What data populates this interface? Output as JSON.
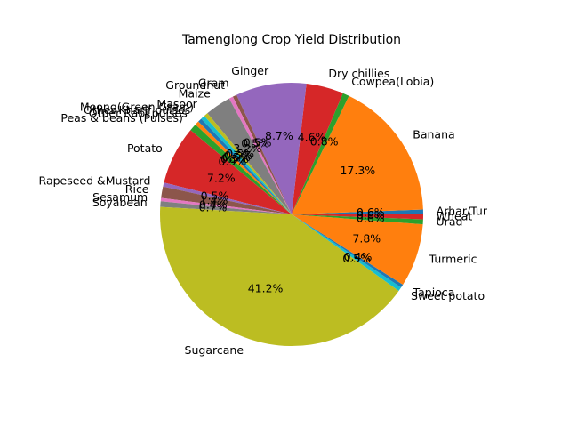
{
  "chart_data": {
    "type": "pie",
    "title": "Tamenglong Crop Yield Distribution",
    "start_angle": 0,
    "direction": "counterclockwise",
    "slices": [
      {
        "label": "Arhar/Tur",
        "value": 0.6,
        "pct_label": "0.6%",
        "color": "#1f77b4"
      },
      {
        "label": "Banana",
        "value": 17.3,
        "pct_label": "17.3%",
        "color": "#ff7f0e"
      },
      {
        "label": "Cowpea(Lobia)",
        "value": 0.8,
        "pct_label": "0.8%",
        "color": "#2ca02c"
      },
      {
        "label": "Dry chillies",
        "value": 4.6,
        "pct_label": "4.6%",
        "color": "#d62728"
      },
      {
        "label": "Ginger",
        "value": 8.7,
        "pct_label": "8.7%",
        "color": "#9467bd"
      },
      {
        "label": "Gram",
        "value": 0.5,
        "pct_label": "0.5%",
        "color": "#8c564b"
      },
      {
        "label": "Groundnut",
        "value": 0.5,
        "pct_label": "0.5%",
        "color": "#e377c2"
      },
      {
        "label": "Maize",
        "value": 3.2,
        "pct_label": "3.2%",
        "color": "#7f7f7f"
      },
      {
        "label": "Masoor",
        "value": 0.5,
        "pct_label": "0.5%",
        "color": "#bcbd22"
      },
      {
        "label": "Moong(Green Gram)",
        "value": 0.5,
        "pct_label": "0.5%",
        "color": "#17becf"
      },
      {
        "label": "Other Kharif pulses",
        "value": 0.5,
        "pct_label": "0.5%",
        "color": "#1f77b4"
      },
      {
        "label": "Other Rabi pulses",
        "value": 0.5,
        "pct_label": "0.5%",
        "color": "#ff7f0e"
      },
      {
        "label": "Peas & beans (Pulses)",
        "value": 0.9,
        "pct_label": "0.9%",
        "color": "#2ca02c"
      },
      {
        "label": "Potato",
        "value": 7.2,
        "pct_label": "7.2%",
        "color": "#d62728"
      },
      {
        "label": "Rapeseed &Mustard",
        "value": 0.5,
        "pct_label": "0.5%",
        "color": "#9467bd"
      },
      {
        "label": "Rice",
        "value": 1.4,
        "pct_label": "1.4%",
        "color": "#8c564b"
      },
      {
        "label": "Sesamum",
        "value": 0.4,
        "pct_label": "0.4%",
        "color": "#e377c2"
      },
      {
        "label": "Soyabean",
        "value": 0.7,
        "pct_label": "0.7%",
        "color": "#7f7f7f"
      },
      {
        "label": "Sugarcane",
        "value": 41.2,
        "pct_label": "41.2%",
        "color": "#bcbd22"
      },
      {
        "label": "Sweet potato",
        "value": 0.5,
        "pct_label": "0.5%",
        "color": "#17becf"
      },
      {
        "label": "Tapioca",
        "value": 0.4,
        "pct_label": "0.4%",
        "color": "#1f77b4"
      },
      {
        "label": "Turmeric",
        "value": 7.8,
        "pct_label": "7.8%",
        "color": "#ff7f0e"
      },
      {
        "label": "Urad",
        "value": 0.6,
        "pct_label": "0.6%",
        "color": "#2ca02c"
      },
      {
        "label": "Wheat",
        "value": 0.6,
        "pct_label": "0.6%",
        "color": "#d62728"
      }
    ]
  }
}
